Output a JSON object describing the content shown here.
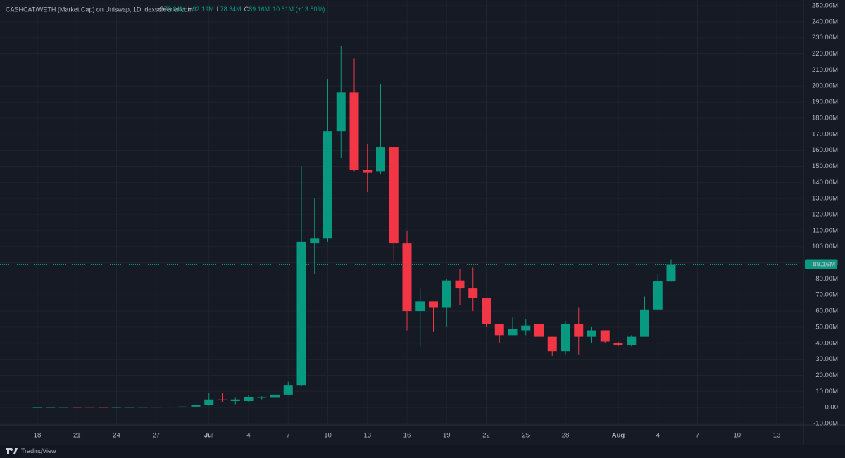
{
  "header": {
    "title": "CASHCAT/WETH (Market Cap) on Uniswap, 1D, dexscreener.com",
    "ohlc": [
      {
        "key": "O",
        "value": "78.34M"
      },
      {
        "key": "H",
        "value": "92.19M"
      },
      {
        "key": "L",
        "value": "78.34M"
      },
      {
        "key": "C",
        "value": "89.16M"
      }
    ],
    "change": "10.81M (+13.80%)"
  },
  "footer": "TradingView",
  "chart_data": {
    "type": "candlestick",
    "categories": [
      "18",
      null,
      null,
      "21",
      null,
      null,
      "24",
      null,
      null,
      "27",
      null,
      null,
      null,
      "Jul",
      null,
      null,
      "4",
      null,
      null,
      "7",
      null,
      null,
      "10",
      null,
      null,
      "13",
      null,
      null,
      "16",
      null,
      null,
      "19",
      null,
      null,
      "22",
      null,
      null,
      "25",
      null,
      null,
      "28",
      null,
      null,
      null,
      "Aug",
      null,
      null,
      "4",
      null,
      null,
      "7",
      null,
      null,
      "10",
      null,
      null,
      "13"
    ],
    "open": [
      0.2,
      0.25,
      0.3,
      0.35,
      0.4,
      0.35,
      0.3,
      0.3,
      0.35,
      0.4,
      0.45,
      0.5,
      0.6,
      1.5,
      5,
      4,
      4,
      6,
      6,
      8,
      14,
      102,
      105,
      172,
      196,
      148,
      147,
      162,
      102,
      60,
      66,
      62,
      79,
      74,
      68,
      52,
      45,
      48,
      52,
      44,
      35,
      52,
      44,
      48,
      40,
      39,
      44,
      61,
      78.34,
      null,
      null,
      null,
      null,
      null,
      null,
      null,
      null
    ],
    "high": [
      0.3,
      0.35,
      0.4,
      0.4,
      0.45,
      0.4,
      0.35,
      0.4,
      0.45,
      0.5,
      0.55,
      0.7,
      1.8,
      9,
      9,
      6,
      7.5,
      7,
      9,
      16,
      150,
      130,
      204,
      225,
      217,
      164,
      201,
      162,
      110,
      74,
      66,
      80,
      86,
      87,
      68,
      52,
      56,
      55,
      52,
      44,
      54,
      62,
      50,
      48,
      41,
      45,
      69,
      83,
      92.19,
      null,
      null,
      null,
      null,
      null,
      null,
      null,
      null
    ],
    "low": [
      0.15,
      0.2,
      0.25,
      0.25,
      0.3,
      0.25,
      0.25,
      0.25,
      0.3,
      0.35,
      0.4,
      0.45,
      0.5,
      1.2,
      3.5,
      2,
      3.5,
      5,
      5.5,
      7.5,
      13,
      83,
      103,
      155,
      147,
      134,
      145,
      91,
      48,
      38,
      47,
      50,
      64,
      60,
      50,
      40,
      45,
      45,
      42,
      32,
      33,
      33,
      40,
      40,
      38,
      38,
      44,
      61,
      78.34,
      null,
      null,
      null,
      null,
      null,
      null,
      null,
      null
    ],
    "close": [
      0.25,
      0.3,
      0.35,
      0.3,
      0.35,
      0.3,
      0.3,
      0.35,
      0.4,
      0.45,
      0.5,
      0.6,
      1.5,
      5,
      4.5,
      5,
      6.5,
      6.5,
      8,
      14,
      103,
      105,
      172,
      196,
      148,
      146,
      162,
      102,
      60,
      66,
      62,
      79,
      74,
      68,
      52,
      45,
      49,
      51,
      44,
      35,
      52,
      44,
      48,
      41,
      39,
      44,
      61,
      78.5,
      89.16,
      null,
      null,
      null,
      null,
      null,
      null,
      null,
      null
    ],
    "up_color": "#089981",
    "down_color": "#f23645",
    "last_price": {
      "value": 89.16,
      "label": "89.16M"
    },
    "ylim": [
      -10,
      250
    ],
    "yticks": [
      {
        "value": -10,
        "label": "-10.00M"
      },
      {
        "value": 0,
        "label": "0.00"
      },
      {
        "value": 10,
        "label": "10.00M"
      },
      {
        "value": 20,
        "label": "20.00M"
      },
      {
        "value": 30,
        "label": "30.00M"
      },
      {
        "value": 40,
        "label": "40.00M"
      },
      {
        "value": 50,
        "label": "50.00M"
      },
      {
        "value": 60,
        "label": "60.00M"
      },
      {
        "value": 70,
        "label": "70.00M"
      },
      {
        "value": 80,
        "label": "80.00M"
      },
      {
        "value": 90,
        "label": "90.00M"
      },
      {
        "value": 100,
        "label": "100.00M"
      },
      {
        "value": 110,
        "label": "110.00M"
      },
      {
        "value": 120,
        "label": "120.00M"
      },
      {
        "value": 130,
        "label": "130.00M"
      },
      {
        "value": 140,
        "label": "140.00M"
      },
      {
        "value": 150,
        "label": "150.00M"
      },
      {
        "value": 160,
        "label": "160.00M"
      },
      {
        "value": 170,
        "label": "170.00M"
      },
      {
        "value": 180,
        "label": "180.00M"
      },
      {
        "value": 190,
        "label": "190.00M"
      },
      {
        "value": 200,
        "label": "200.00M"
      },
      {
        "value": 210,
        "label": "210.00M"
      },
      {
        "value": 220,
        "label": "220.00M"
      },
      {
        "value": 230,
        "label": "230.00M"
      },
      {
        "value": 240,
        "label": "240.00M"
      },
      {
        "value": 250,
        "label": "250.00M"
      }
    ],
    "grid": true
  }
}
